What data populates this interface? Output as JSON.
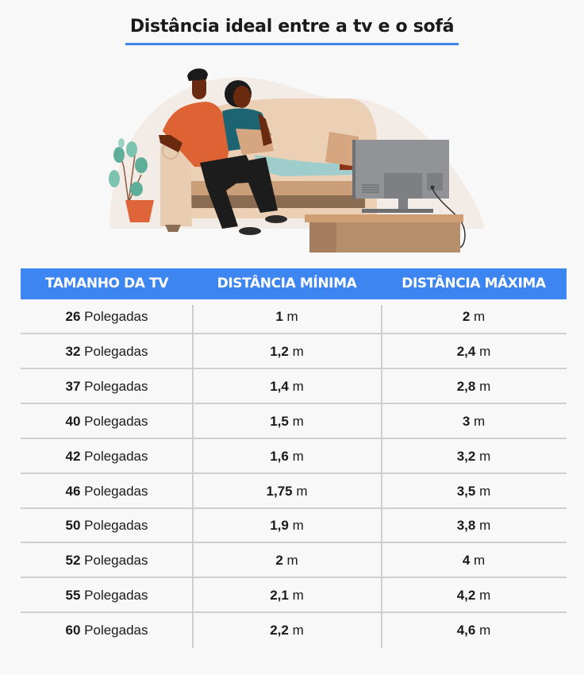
{
  "title": "Distância ideal entre a tv e o sofá",
  "colors": {
    "accent": "#3d85f0",
    "background": "#f8f8f8",
    "divider": "#cfcfcf"
  },
  "illustration": {
    "description": "Couple sitting on sofa watching TV, plant on the left",
    "elements": [
      "plant-icon",
      "sofa",
      "man",
      "woman",
      "pillow",
      "tv-back",
      "tv-stand"
    ]
  },
  "table": {
    "headers": [
      "TAMANHO DA TV",
      "DISTÂNCIA MÍNIMA",
      "DISTÂNCIA MÁXIMA"
    ],
    "size_unit": "Polegadas",
    "distance_unit": "m",
    "rows": [
      {
        "size": "26",
        "min": "1",
        "max": "2"
      },
      {
        "size": "32",
        "min": "1,2",
        "max": "2,4"
      },
      {
        "size": "37",
        "min": "1,4",
        "max": "2,8"
      },
      {
        "size": "40",
        "min": "1,5",
        "max": "3"
      },
      {
        "size": "42",
        "min": "1,6",
        "max": "3,2"
      },
      {
        "size": "46",
        "min": "1,75",
        "max": "3,5"
      },
      {
        "size": "50",
        "min": "1,9",
        "max": "3,8"
      },
      {
        "size": "52",
        "min": "2",
        "max": "4"
      },
      {
        "size": "55",
        "min": "2,1",
        "max": "4,2"
      },
      {
        "size": "60",
        "min": "2,2",
        "max": "4,6"
      }
    ]
  }
}
